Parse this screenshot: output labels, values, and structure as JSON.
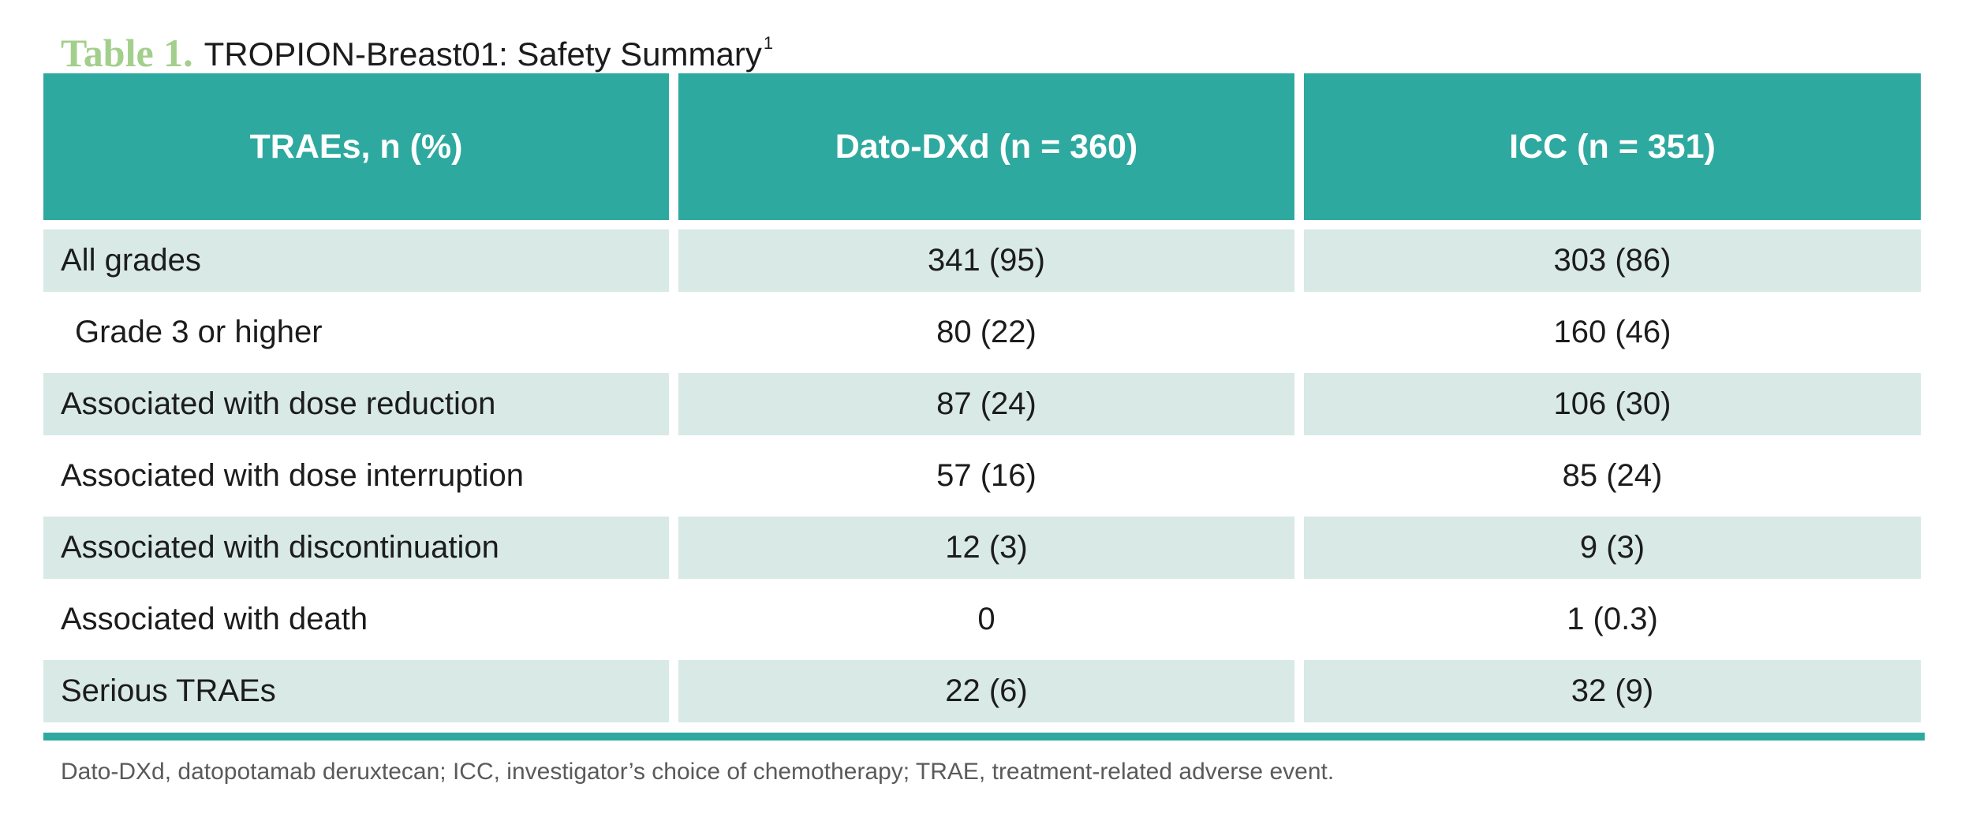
{
  "title": {
    "label": "Table 1.",
    "text": "TROPION-Breast01: Safety Summary",
    "superscript": "1"
  },
  "table": {
    "headers": [
      "TRAEs, n (%)",
      "Dato-DXd (n = 360)",
      "ICC (n = 351)"
    ],
    "rows": [
      {
        "label": "All grades",
        "dato": "341 (95)",
        "icc": "303 (86)"
      },
      {
        "label": "Grade 3 or higher",
        "dato": "80 (22)",
        "icc": "160 (46)"
      },
      {
        "label": "Associated with dose reduction",
        "dato": "87 (24)",
        "icc": "106 (30)"
      },
      {
        "label": "Associated with dose interruption",
        "dato": "57 (16)",
        "icc": "85 (24)"
      },
      {
        "label": "Associated with discontinuation",
        "dato": "12 (3)",
        "icc": "9 (3)"
      },
      {
        "label": "Associated with death",
        "dato": "0",
        "icc": "1 (0.3)"
      },
      {
        "label": "Serious TRAEs",
        "dato": "22 (6)",
        "icc": "32 (9)"
      }
    ]
  },
  "footnote": "Dato-DXd, datopotamab deruxtecan; ICC, investigator’s choice of chemotherapy; TRAE, treatment-related adverse event.",
  "colors": {
    "title_label": "#a3cf8c",
    "header_bg": "#2ea99f",
    "shaded_row_bg": "#d8e9e6",
    "rule": "#2ea99f"
  }
}
